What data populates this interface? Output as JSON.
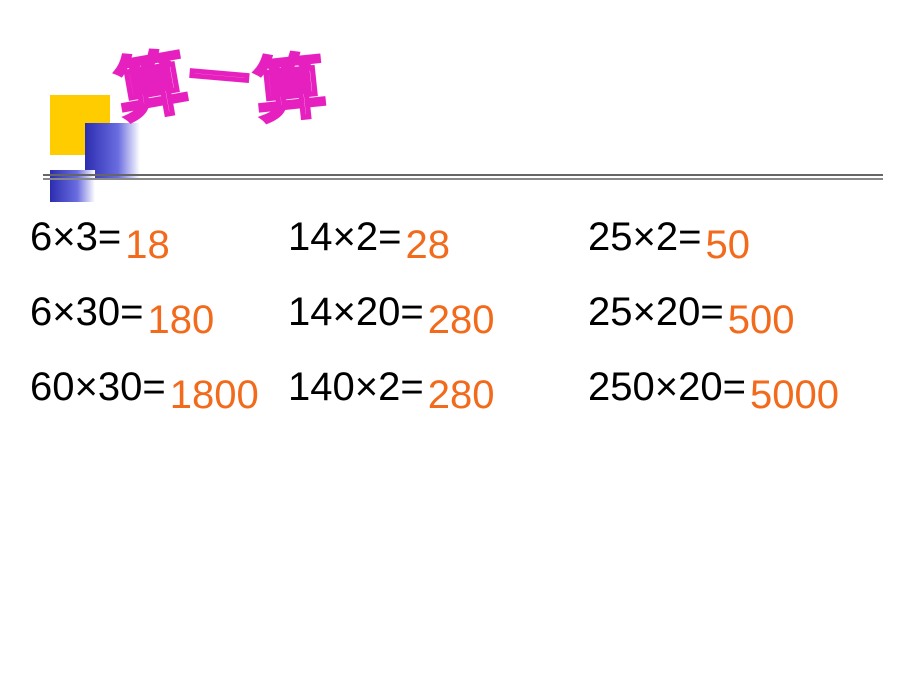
{
  "title": {
    "c1": "算",
    "c2": "一",
    "c3": "算"
  },
  "colors": {
    "answer": "#f26a1b",
    "expr": "#000000",
    "background": "#ffffff",
    "title_stroke": "#e61fbf",
    "title_fill": "#ffffff",
    "deco_yellow": "#ffcc00",
    "deco_blue": "#2b2db0"
  },
  "typography": {
    "expr_fontsize": 40,
    "answer_fontsize": 40,
    "title_fontsize": 70
  },
  "layout": {
    "columns": 3,
    "rows": 3,
    "row_spacing": 30
  },
  "problems": {
    "r1": {
      "a": {
        "expr": "6×3=",
        "ans": "18"
      },
      "b": {
        "expr": "14×2=",
        "ans": "28"
      },
      "c": {
        "expr": "25×2=",
        "ans": "50"
      }
    },
    "r2": {
      "a": {
        "expr": "6×30=",
        "ans": "180"
      },
      "b": {
        "expr": "14×20=",
        "ans": "280"
      },
      "c": {
        "expr": "25×20=",
        "ans": "500"
      }
    },
    "r3": {
      "a": {
        "expr": "60×30=",
        "ans": "1800"
      },
      "b": {
        "expr": "140×2=",
        "ans": "280"
      },
      "c": {
        "expr": "250×20=",
        "ans": "5000"
      }
    }
  }
}
